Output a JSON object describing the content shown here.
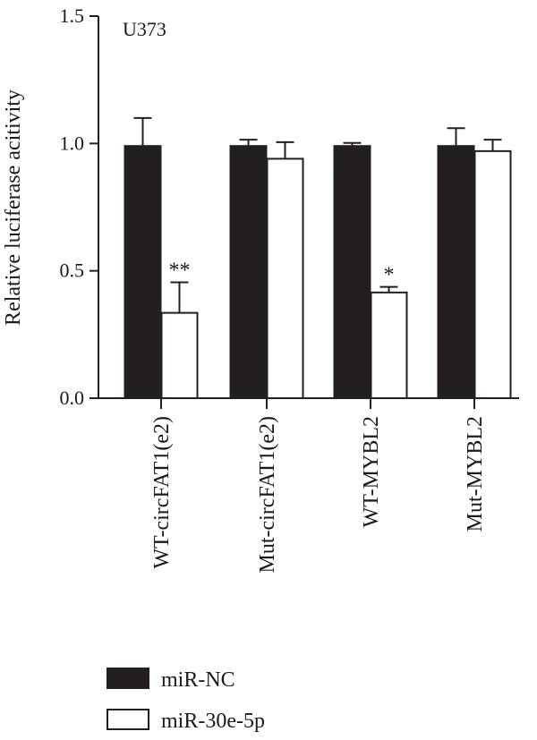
{
  "chart_data": {
    "type": "bar",
    "panel_label": "U373",
    "ylabel": "Relative luciferase acitivity",
    "xlabel": "",
    "ylim": [
      0,
      1.5
    ],
    "yticks": [
      "0.0",
      "0.5",
      "1.0",
      "1.5"
    ],
    "categories": [
      "WT-circFAT1(e2)",
      "Mut-circFAT1(e2)",
      "WT-MYBL2",
      "Mut-MYBL2"
    ],
    "series": [
      {
        "name": "miR-NC",
        "color": "#231f20",
        "values": [
          0.99,
          0.99,
          0.99,
          0.99
        ],
        "errors": [
          0.11,
          0.025,
          0.012,
          0.07
        ]
      },
      {
        "name": "miR-30e-5p",
        "color": "#ffffff",
        "values": [
          0.335,
          0.94,
          0.415,
          0.97
        ],
        "errors": [
          0.12,
          0.065,
          0.022,
          0.045
        ]
      }
    ],
    "annotations": [
      "**",
      "",
      "*",
      ""
    ],
    "legend_position": "bottom-left",
    "grid": false
  }
}
